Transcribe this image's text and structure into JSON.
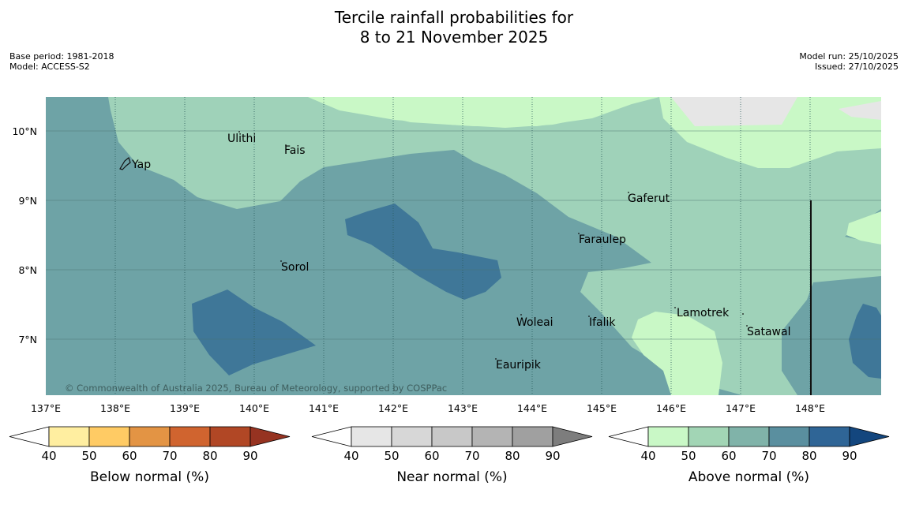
{
  "title": {
    "line1": "Tercile rainfall probabilities for",
    "line2": "8 to 21 November 2025"
  },
  "meta": {
    "base_period": "Base period: 1981-2018",
    "model": "Model: ACCESS-S2",
    "model_run": "Model run: 25/10/2025",
    "issued": "Issued: 27/10/2025"
  },
  "map": {
    "lat_labels": [
      "10°N",
      "9°N",
      "8°N",
      "7°N"
    ],
    "lon_labels": [
      "137°E",
      "138°E",
      "139°E",
      "140°E",
      "141°E",
      "142°E",
      "143°E",
      "144°E",
      "145°E",
      "146°E",
      "147°E",
      "148°E"
    ],
    "places": {
      "ulithi": "Ulithi",
      "fais": "Fais",
      "yap": "Yap",
      "gaferut": "Gaferut",
      "faraulep": "Faraulep",
      "sorol": "Sorol",
      "woleai": "Woleai",
      "ifalik": "Ifalik",
      "lamotrek": "Lamotrek",
      "satawal": "Satawal",
      "eauripik": "Eauripik"
    },
    "copyright": "© Commonwealth of Australia 2025, Bureau of Meteorology, supported by COSPPac",
    "colors": {
      "ocean_deep": "#6ea3a6",
      "above_50": "#9fd2b9",
      "above_40": "#c9f8c6",
      "above_80": "#3f7798",
      "near_40": "#e6e6e6"
    }
  },
  "legends": {
    "below": {
      "label": "Below normal (%)",
      "ticks": [
        "40",
        "50",
        "60",
        "70",
        "80",
        "90"
      ],
      "colors": [
        "#ffffff",
        "#ffeea0",
        "#ffcb64",
        "#e39444",
        "#d0642f",
        "#b14725",
        "#963321"
      ]
    },
    "near": {
      "label": "Near normal (%)",
      "ticks": [
        "40",
        "50",
        "60",
        "70",
        "80",
        "90"
      ],
      "colors": [
        "#ffffff",
        "#e6e6e6",
        "#d7d7d7",
        "#c8c8c8",
        "#b4b4b4",
        "#a0a0a0",
        "#7d7d7d"
      ]
    },
    "above": {
      "label": "Above normal (%)",
      "ticks": [
        "40",
        "50",
        "60",
        "70",
        "80",
        "90"
      ],
      "colors": [
        "#ffffff",
        "#c9f8c6",
        "#a2d5b5",
        "#80b3a9",
        "#5a8f9f",
        "#2f6596",
        "#13467e"
      ]
    }
  }
}
